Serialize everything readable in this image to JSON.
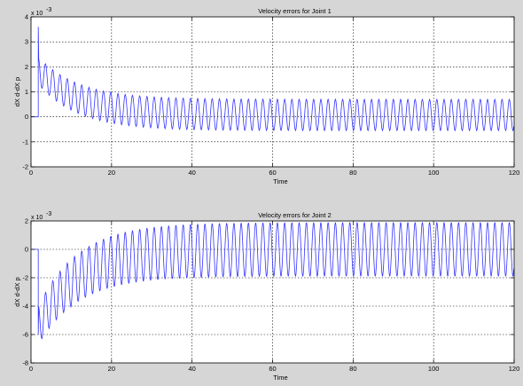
{
  "figure": {
    "background": "#d6d6d6"
  },
  "chart_data": [
    {
      "type": "line",
      "title": "Velocity errors for Joint 1",
      "xlabel": "Time",
      "ylabel": "dX d-dX p",
      "y_exponent_label": "x 10",
      "y_exponent_power": "-3",
      "xlim": [
        0,
        120
      ],
      "ylim": [
        -2,
        4
      ],
      "xticks": [
        0,
        20,
        40,
        60,
        80,
        100,
        120
      ],
      "yticks": [
        -2,
        -1,
        0,
        1,
        2,
        3,
        4
      ],
      "xtick_labels": [
        "0",
        "20",
        "40",
        "60",
        "80",
        "100",
        "120"
      ],
      "ytick_labels": [
        "-2",
        "-1",
        "0",
        "1",
        "2",
        "3",
        "4"
      ],
      "grid": true,
      "line_color": "#3333ff",
      "series": [
        {
          "segments": [
            {
              "kind": "flat",
              "x0": 0,
              "x1": 1.8,
              "value": 0.0
            },
            {
              "kind": "spike",
              "x": 1.8,
              "from": 0.0,
              "to": 3.6
            },
            {
              "kind": "oscillation",
              "x0": 1.8,
              "x1": 120,
              "period": 1.8,
              "start_phase_value": 3.6,
              "upper_start": 2.4,
              "upper_end": 0.7,
              "lower_start": 1.3,
              "lower_end": -0.55,
              "decay_time": 10
            }
          ]
        }
      ]
    },
    {
      "type": "line",
      "title": "Velocity errors for Joint 2",
      "xlabel": "Time",
      "ylabel": "dX d-dX p",
      "y_exponent_label": "x 10",
      "y_exponent_power": "-3",
      "xlim": [
        0,
        120
      ],
      "ylim": [
        -8,
        2
      ],
      "xticks": [
        0,
        20,
        40,
        60,
        80,
        100,
        120
      ],
      "yticks": [
        -8,
        -6,
        -4,
        -2,
        0,
        2
      ],
      "xtick_labels": [
        "0",
        "20",
        "40",
        "60",
        "80",
        "100",
        "120"
      ],
      "ytick_labels": [
        "-8",
        "-6",
        "-4",
        "-2",
        "0",
        "2"
      ],
      "grid": true,
      "line_color": "#3333ff",
      "series": [
        {
          "segments": [
            {
              "kind": "flat",
              "x0": 0,
              "x1": 1.8,
              "value": 0.0
            },
            {
              "kind": "spike",
              "x": 1.8,
              "from": 0.0,
              "to": -6.0
            },
            {
              "kind": "oscillation",
              "x0": 1.8,
              "x1": 120,
              "period": 1.8,
              "start_phase_value": -6.0,
              "upper_start": -4.0,
              "upper_end": 1.9,
              "lower_start": -6.7,
              "lower_end": -1.9,
              "decay_time": 10
            }
          ]
        }
      ]
    }
  ]
}
